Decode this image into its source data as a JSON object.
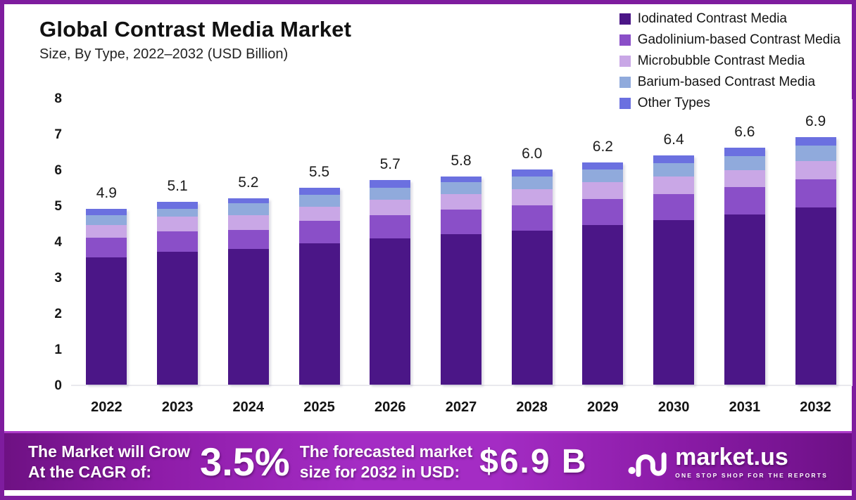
{
  "header": {
    "title": "Global Contrast Media Market",
    "subtitle": "Size, By Type, 2022–2032 (USD Billion)"
  },
  "chart_data": {
    "type": "bar",
    "stacked": true,
    "title": "Global Contrast Media Market Size, By Type, 2022–2032 (USD Billion)",
    "categories": [
      "2022",
      "2023",
      "2024",
      "2025",
      "2026",
      "2027",
      "2028",
      "2029",
      "2030",
      "2031",
      "2032"
    ],
    "series": [
      {
        "name": "Iodinated Contrast Media",
        "color": "#4b1687",
        "values": [
          3.55,
          3.7,
          3.78,
          3.95,
          4.08,
          4.2,
          4.3,
          4.45,
          4.58,
          4.75,
          4.95
        ]
      },
      {
        "name": "Gadolinium-based Contrast Media",
        "color": "#8a4fc8",
        "values": [
          0.55,
          0.58,
          0.54,
          0.62,
          0.65,
          0.68,
          0.7,
          0.72,
          0.74,
          0.76,
          0.78
        ]
      },
      {
        "name": "Microbubble Contrast Media",
        "color": "#c9a7e6",
        "values": [
          0.35,
          0.4,
          0.4,
          0.4,
          0.42,
          0.44,
          0.45,
          0.47,
          0.48,
          0.48,
          0.5
        ]
      },
      {
        "name": "Barium-based Contrast Media",
        "color": "#90aadc",
        "values": [
          0.27,
          0.22,
          0.33,
          0.33,
          0.35,
          0.33,
          0.35,
          0.36,
          0.38,
          0.39,
          0.43
        ]
      },
      {
        "name": "Other Types",
        "color": "#6b70e0",
        "values": [
          0.18,
          0.2,
          0.15,
          0.2,
          0.2,
          0.15,
          0.2,
          0.2,
          0.22,
          0.22,
          0.24
        ]
      }
    ],
    "totals_display": [
      "4.9",
      "5.1",
      "5.2",
      "5.5",
      "5.7",
      "5.8",
      "6.0",
      "6.2",
      "6.4",
      "6.6",
      "6.9"
    ],
    "ylim": [
      0,
      8
    ],
    "yticks": [
      0,
      1,
      2,
      3,
      4,
      5,
      6,
      7,
      8
    ],
    "grid": false,
    "legend_position": "top-right"
  },
  "banner": {
    "cagr_line1": "The Market will Grow",
    "cagr_line2": "At the CAGR of:",
    "cagr_value": "3.5%",
    "forecast_line1": "The forecasted market",
    "forecast_line2": "size for 2032 in USD:",
    "forecast_value": "$6.9 B",
    "logo_text": "market.us",
    "logo_tagline": "ONE STOP SHOP FOR THE REPORTS"
  },
  "colors": {
    "frame_border": "#7e1c9e",
    "banner_gradient_mid": "#a42cc4",
    "banner_gradient_edge": "#6e1183",
    "axis_line": "#e9e9ee",
    "text_dark": "#141414"
  }
}
